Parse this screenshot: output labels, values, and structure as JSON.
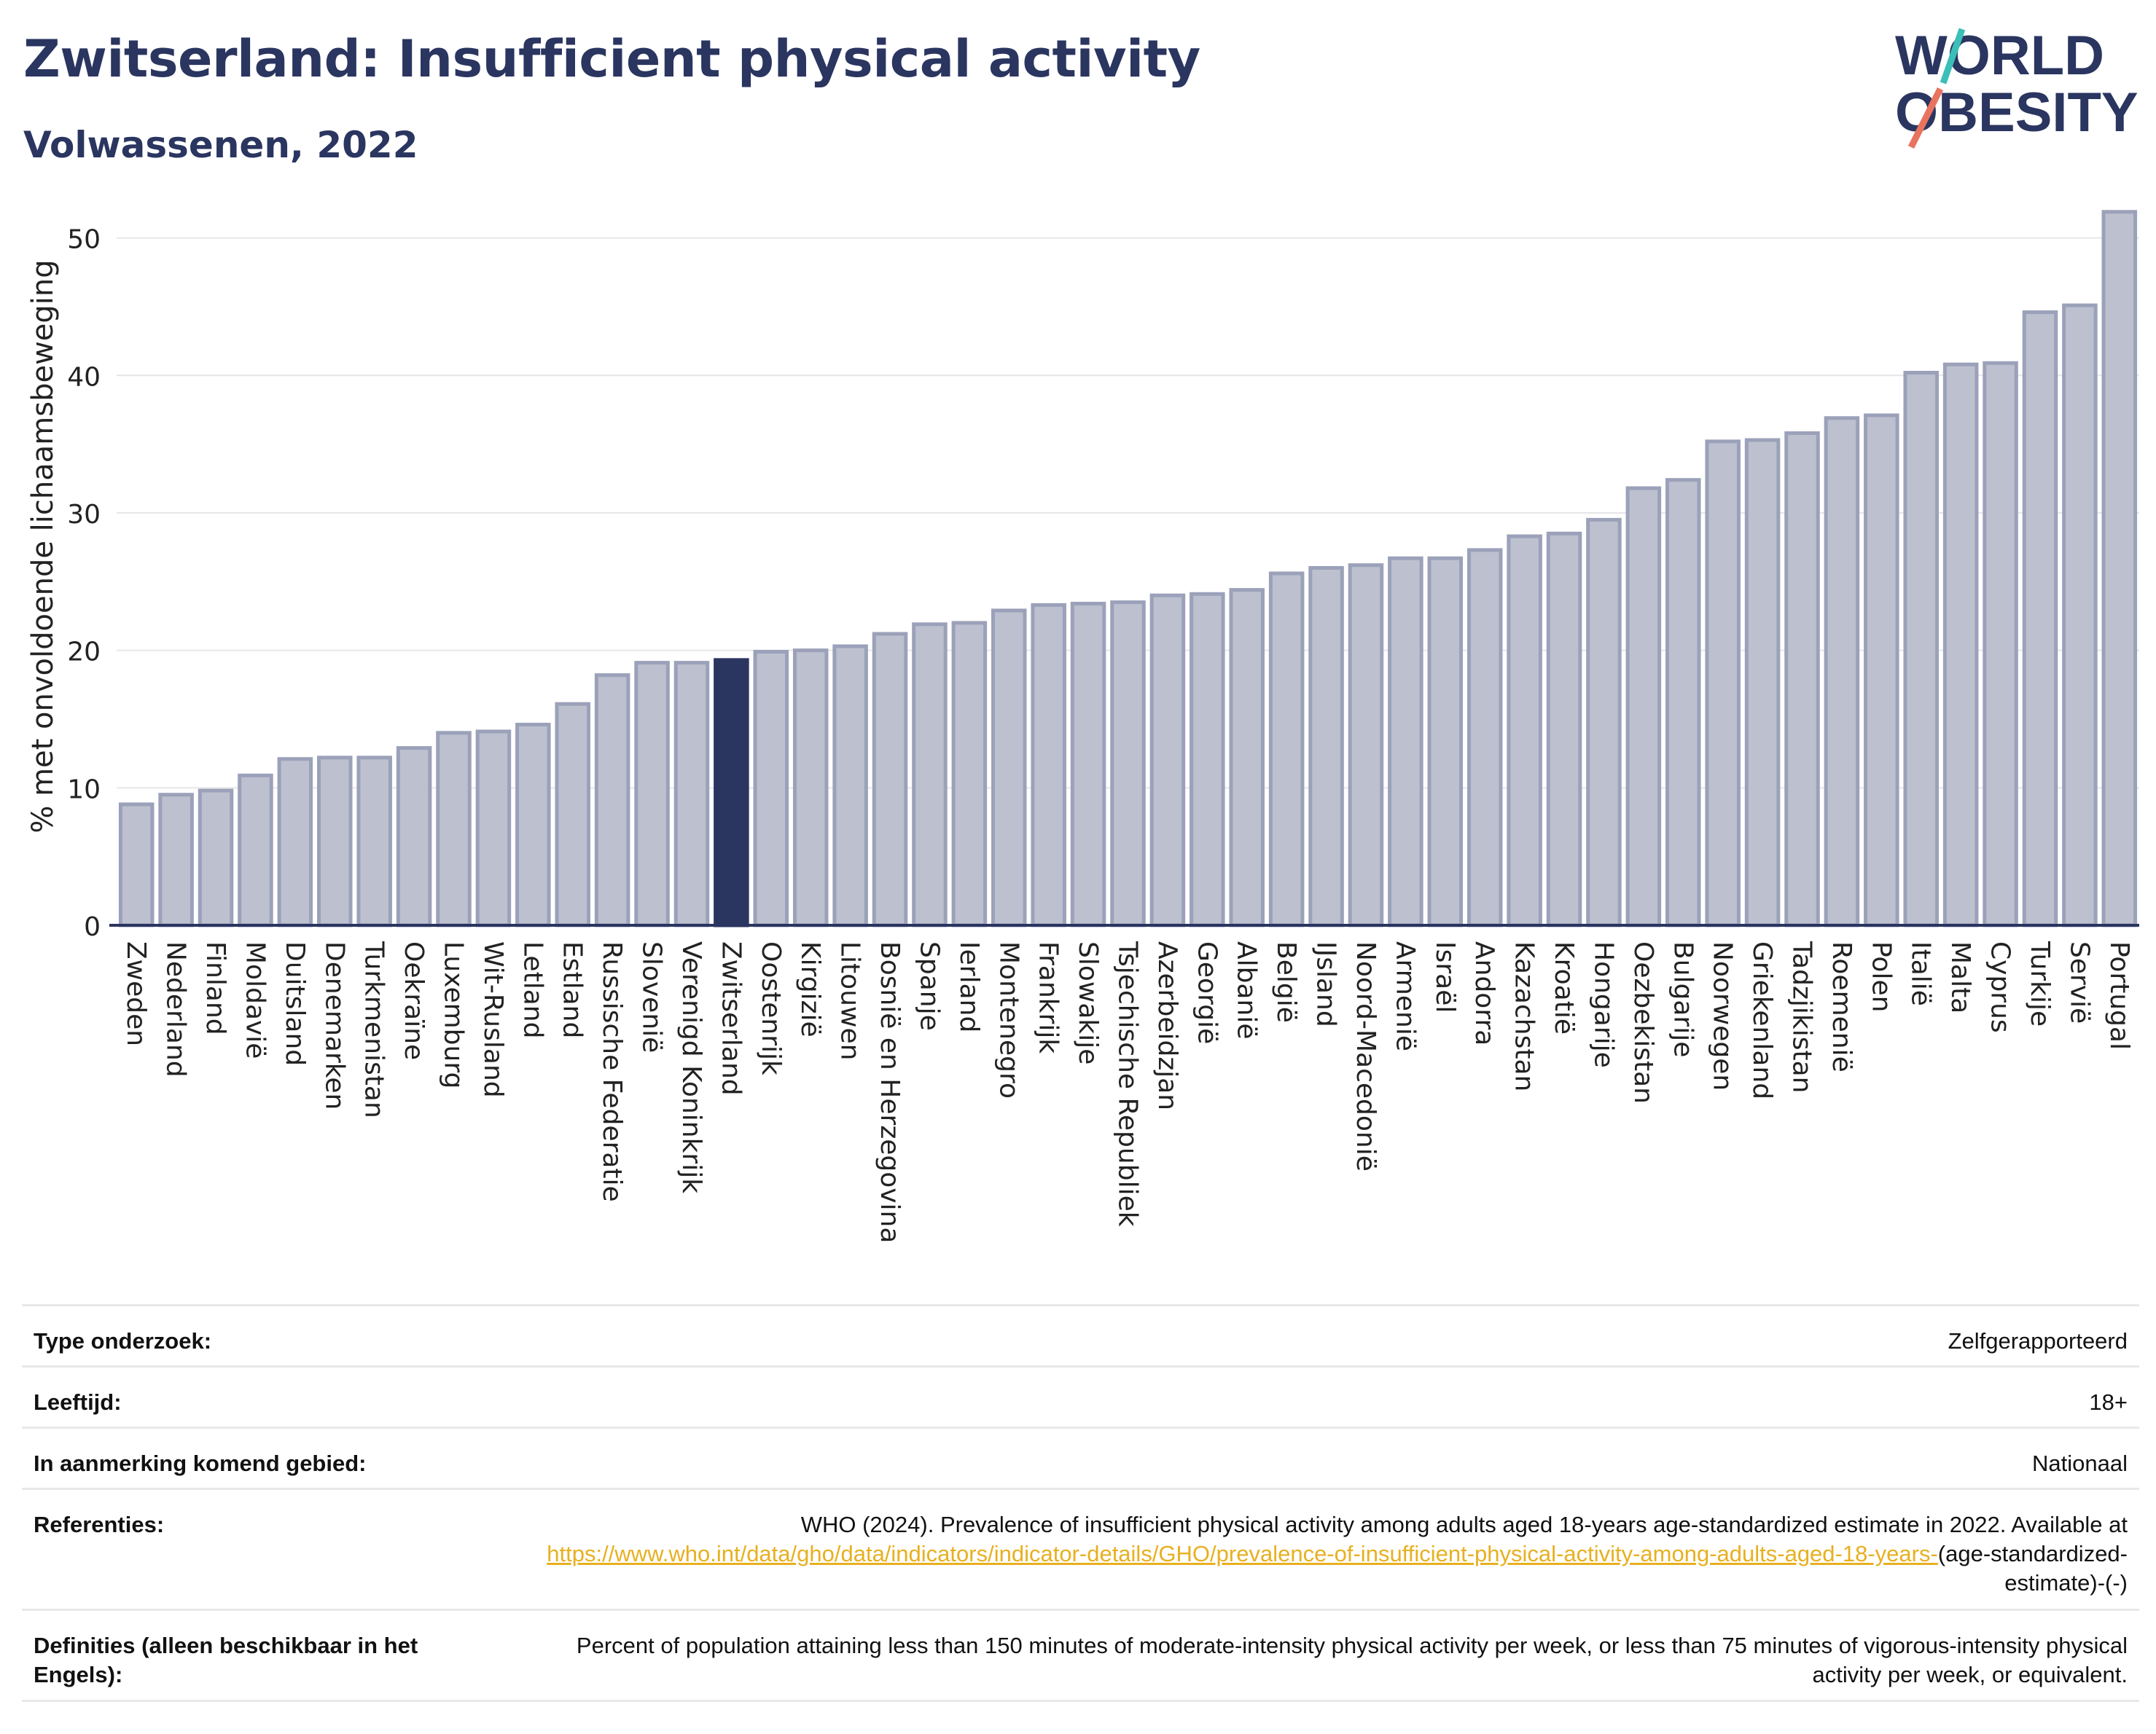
{
  "header": {
    "title": "Zwitserland: Insufficient physical activity",
    "subtitle": "Volwassenen, 2022"
  },
  "logo": {
    "line1": "WORLD",
    "line2": "OBESITY"
  },
  "colors": {
    "title": "#2a3560",
    "bar": "#bcc0cf",
    "bar_edge": "#9ba1b9",
    "highlight": "#2a3560",
    "link": "#e8b020"
  },
  "chart_data": {
    "type": "bar",
    "ylabel": "% met onvoldoende lichaamsbeweging",
    "ylim": [
      0,
      53
    ],
    "yticks": [
      0,
      10,
      20,
      30,
      40,
      50
    ],
    "grid": true,
    "highlight": "Zwitserland",
    "categories": [
      "Zweden",
      "Nederland",
      "Finland",
      "Moldavië",
      "Duitsland",
      "Denemarken",
      "Turkmenistan",
      "Oekraïne",
      "Luxemburg",
      "Wit-Rusland",
      "Letland",
      "Estland",
      "Russische Federatie",
      "Slovenië",
      "Verenigd Koninkrijk",
      "Zwitserland",
      "Oostenrijk",
      "Kirgizië",
      "Litouwen",
      "Bosnië en Herzegovina",
      "Spanje",
      "Ierland",
      "Montenegro",
      "Frankrijk",
      "Slowakije",
      "Tsjechische Republiek",
      "Azerbeidzjan",
      "Georgië",
      "Albanië",
      "België",
      "IJsland",
      "Noord-Macedonië",
      "Armenië",
      "Israël",
      "Andorra",
      "Kazachstan",
      "Kroatië",
      "Hongarije",
      "Oezbekistan",
      "Bulgarije",
      "Noorwegen",
      "Griekenland",
      "Tadzjikistan",
      "Roemenië",
      "Polen",
      "Italië",
      "Malta",
      "Cyprus",
      "Turkije",
      "Servië",
      "Portugal"
    ],
    "values": [
      8.8,
      9.5,
      9.8,
      10.9,
      12.1,
      12.2,
      12.2,
      12.9,
      14.0,
      14.1,
      14.6,
      16.1,
      18.2,
      19.1,
      19.1,
      19.3,
      19.9,
      20.0,
      20.3,
      21.2,
      21.9,
      22.0,
      22.9,
      23.3,
      23.4,
      23.5,
      24.0,
      24.1,
      24.4,
      25.6,
      26.0,
      26.2,
      26.7,
      26.7,
      27.3,
      28.3,
      28.5,
      29.5,
      31.8,
      32.4,
      35.2,
      35.3,
      35.8,
      36.9,
      37.1,
      40.2,
      40.8,
      40.9,
      44.6,
      45.1,
      51.9
    ]
  },
  "meta": {
    "rows": [
      {
        "label": "Type onderzoek:",
        "value": "Zelfgerapporteerd"
      },
      {
        "label": "Leeftijd:",
        "value": "18+"
      },
      {
        "label": "In aanmerking komend gebied:",
        "value": "Nationaal"
      }
    ],
    "references": {
      "label": "Referenties:",
      "text": "WHO (2024). Prevalence of insufficient physical activity among adults aged 18-years age-standardized estimate in 2022. Available at",
      "link": "https://www.who.int/data/gho/data/indicators/indicator-details/GHO/prevalence-of-insufficient-physical-activity-among-adults-aged-18-years-",
      "suffix": "(age-standardized-estimate)-(-)"
    },
    "definitions": {
      "label": "Definities (alleen beschikbaar in het Engels):",
      "value": "Percent of population attaining less than 150 minutes of moderate-intensity physical activity per week, or less than 75 minutes of vigorous-intensity physical activity per week, or equivalent."
    }
  }
}
